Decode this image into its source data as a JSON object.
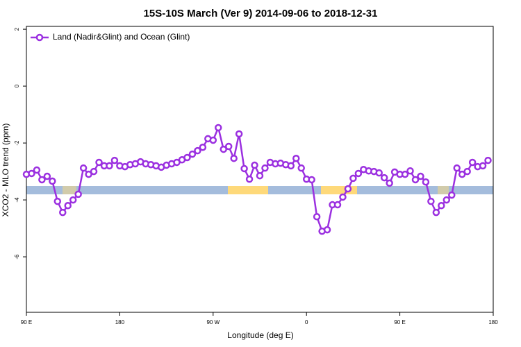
{
  "chart_data": {
    "type": "line",
    "title": "15S-10S March (Ver 9)   2014-09-06 to 2018-12-31",
    "x_label": "Longitude (deg E)",
    "y_label": "XCO2 - MLO trend (ppm)",
    "legend": "top-left",
    "xlim": [
      90,
      540
    ],
    "xticks": [
      {
        "value": 90,
        "label": "90 E"
      },
      180,
      {
        "value": 270,
        "label": "90 W"
      },
      {
        "value": 360,
        "label": "0"
      },
      {
        "value": 450,
        "label": "90 E"
      },
      {
        "value": 540,
        "label": "180"
      }
    ],
    "ylim": [
      -7.95,
      2.1
    ],
    "yticks": [
      2,
      0,
      -2,
      -4,
      -6
    ],
    "x": [
      90,
      95,
      100,
      105,
      110,
      115,
      120,
      125,
      130,
      135,
      140,
      145,
      150,
      155,
      160,
      165,
      170,
      175,
      180,
      185,
      190,
      195,
      200,
      205,
      210,
      215,
      220,
      225,
      230,
      235,
      240,
      245,
      250,
      255,
      260,
      265,
      270,
      275,
      280,
      285,
      290,
      295,
      300,
      305,
      310,
      315,
      320,
      325,
      330,
      335,
      340,
      345,
      350,
      355,
      360,
      365,
      370,
      375,
      380,
      385,
      390,
      395,
      400,
      405,
      410,
      415,
      420,
      425,
      430,
      435,
      440,
      445,
      450,
      455,
      460,
      465,
      470,
      475,
      480,
      485,
      490,
      495,
      500,
      505,
      510,
      515,
      520,
      525,
      530,
      535
    ],
    "series": [
      {
        "name": "Land (Nadir&Glint) and Ocean (Glint)",
        "color": "#9b30e0",
        "values": [
          -3.1,
          -3.07,
          -2.95,
          -3.29,
          -3.17,
          -3.34,
          -4.05,
          -4.44,
          -4.2,
          -4.0,
          -3.8,
          -2.88,
          -3.1,
          -3.0,
          -2.68,
          -2.8,
          -2.8,
          -2.61,
          -2.8,
          -2.83,
          -2.76,
          -2.73,
          -2.66,
          -2.73,
          -2.76,
          -2.8,
          -2.85,
          -2.78,
          -2.73,
          -2.68,
          -2.59,
          -2.51,
          -2.39,
          -2.27,
          -2.15,
          -1.85,
          -1.9,
          -1.46,
          -2.22,
          -2.12,
          -2.54,
          -1.68,
          -2.9,
          -3.27,
          -2.78,
          -3.15,
          -2.88,
          -2.68,
          -2.73,
          -2.71,
          -2.76,
          -2.8,
          -2.54,
          -2.88,
          -3.27,
          -3.29,
          -4.59,
          -5.1,
          -5.05,
          -4.17,
          -4.17,
          -3.9,
          -3.61,
          -3.24,
          -3.07,
          -2.93,
          -2.98,
          -3.0,
          -3.05,
          -3.22,
          -3.41,
          -3.02,
          -3.1,
          -3.1,
          -2.98,
          -3.29,
          -3.17,
          -3.37,
          -4.05,
          -4.44,
          -4.2,
          -4.0,
          -3.83,
          -2.88,
          -3.1,
          -3.0,
          -2.68,
          -2.83,
          -2.8,
          -2.61
        ]
      }
    ]
  }
}
